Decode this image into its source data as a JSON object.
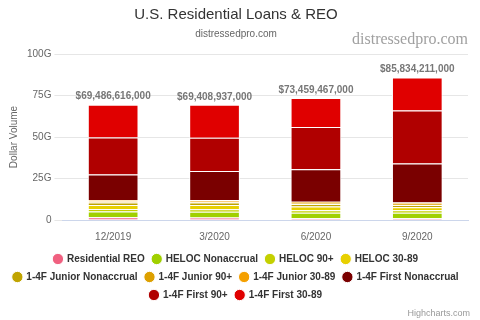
{
  "chart_data": {
    "type": "bar",
    "title": "U.S. Residential Loans & REO",
    "subtitle": "distressedpro.com",
    "annotations": [
      "distressedpro.com",
      "Highcharts.com"
    ],
    "y_label": "Dollar Volume",
    "categories": [
      "12/2019",
      "3/2020",
      "6/2020",
      "9/2020"
    ],
    "stacked": true,
    "grid": true,
    "legend": "bottom",
    "ylim": [
      0,
      100000000000
    ],
    "yticks": [
      0,
      {
        "value": 25000000000,
        "label": "25G"
      },
      {
        "value": 50000000000,
        "label": "50G"
      },
      {
        "value": 75000000000,
        "label": "75G"
      },
      {
        "value": 100000000000,
        "label": "100G"
      }
    ],
    "totals": [
      69486616000,
      69408937000,
      73459467000,
      85834211000
    ],
    "total_labels": [
      "$69,486,616,000",
      "$69,408,937,000",
      "$73,459,467,000",
      "$85,834,211,000"
    ],
    "series": [
      {
        "name": "1-4F First 30-89",
        "color": "#e00000",
        "values": [
          19800000000,
          19900000000,
          17500000000,
          19800000000
        ]
      },
      {
        "name": "1-4F First 90+",
        "color": "#b00000",
        "values": [
          22300000000,
          20000000000,
          25500000000,
          32000000000
        ]
      },
      {
        "name": "1-4F First Nonaccrual",
        "color": "#7a0000",
        "values": [
          15300000000,
          17500000000,
          19500000000,
          23500000000
        ]
      },
      {
        "name": "1-4F Junior 30-89",
        "color": "#f5a000",
        "values": [
          1000000000,
          1000000000,
          800000000,
          700000000
        ]
      },
      {
        "name": "1-4F Junior 90+",
        "color": "#dda000",
        "values": [
          500000000,
          500000000,
          600000000,
          700000000
        ]
      },
      {
        "name": "1-4F Junior Nonaccrual",
        "color": "#c0a400",
        "values": [
          1500000000,
          1500000000,
          1500000000,
          1400000000
        ]
      },
      {
        "name": "HELOC 30-89",
        "color": "#e8d000",
        "values": [
          2500000000,
          2500000000,
          2300000000,
          1800000000
        ]
      },
      {
        "name": "HELOC 90+",
        "color": "#c4d000",
        "values": [
          1500000000,
          1500000000,
          1500000000,
          1600000000
        ]
      },
      {
        "name": "HELOC Nonaccrual",
        "color": "#a0d000",
        "values": [
          3500000000,
          3500000000,
          3300000000,
          3300000000
        ]
      },
      {
        "name": "Residential REO",
        "color": "#f06080",
        "values": [
          1600000000,
          1500000000,
          1000000000,
          1000000000
        ]
      }
    ]
  }
}
